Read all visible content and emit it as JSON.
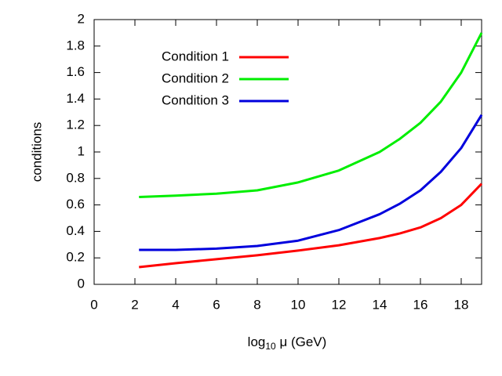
{
  "chart_data": {
    "type": "line",
    "xlabel": [
      "log",
      "10",
      " μ (GeV)"
    ],
    "ylabel": "conditions",
    "x": [
      2.2,
      4,
      6,
      8,
      10,
      12,
      14,
      15,
      16,
      17,
      18,
      19
    ],
    "series": [
      {
        "name": "Condition 1",
        "color": "#ff0000",
        "values": [
          0.13,
          0.16,
          0.19,
          0.22,
          0.255,
          0.295,
          0.35,
          0.385,
          0.43,
          0.5,
          0.6,
          0.76
        ]
      },
      {
        "name": "Condition 2",
        "color": "#00ee00",
        "values": [
          0.66,
          0.67,
          0.685,
          0.71,
          0.77,
          0.86,
          1.0,
          1.1,
          1.22,
          1.38,
          1.6,
          1.9
        ]
      },
      {
        "name": "Condition 3",
        "color": "#0000dd",
        "values": [
          0.26,
          0.26,
          0.27,
          0.29,
          0.33,
          0.41,
          0.53,
          0.61,
          0.71,
          0.85,
          1.03,
          1.28
        ]
      }
    ],
    "xlim": [
      0,
      19
    ],
    "xticks": [
      0,
      2,
      4,
      6,
      8,
      10,
      12,
      14,
      16,
      18
    ],
    "ylim": [
      0,
      2
    ],
    "yticks": [
      0,
      0.2,
      0.4,
      0.6,
      0.8,
      1,
      1.2,
      1.4,
      1.6,
      1.8,
      2
    ],
    "grid": false,
    "legend": "upper-left"
  }
}
